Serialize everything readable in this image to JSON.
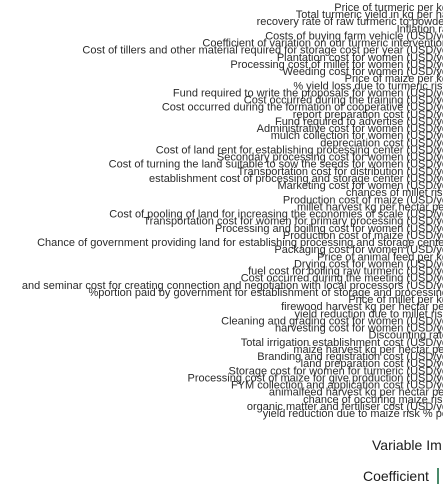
{
  "chart_data": {
    "type": "bar",
    "orientation": "horizontal",
    "xlabel": "Variable Im",
    "legend_title": "Coefficient",
    "categories": [
      "Price of turmeric per kg",
      "Total turmeric yield in kg per ha",
      "recovery rate of raw turmeric to powder",
      "Inflation ra",
      "Costs of buying farm vehicle (USD/ye",
      "Coefficient of variation on our turmeric intervention",
      "Cost of tillers and other material required for storage cost per year (USD/ye",
      "Plantation cost for women (USD/ye",
      "Processing cost of millet for women (USD/ye",
      "Weeding cost for women (USD/ye",
      "Price of maize per kg",
      "% yield loss due to turmeric risk",
      "Fund required to write the proposals for women (USD/ye",
      "Cost occurred during the training (USD/ye",
      "Cost occurred during the formation of cooperative (USD/ye",
      "report preparation cost (USD/ye",
      "Fund required to advertise (USD/ye",
      "Administrative cost for women (USD/ye",
      "mulch collection for women (USD/ye",
      "depreciation cost (USD/ye",
      "Cost of land rent for establishing processing center (USD/ye",
      "Secondary processing cost for women (USD/ye",
      "Cost of turning the land suitable to sow the seeds for women (USD/ye",
      "Transportation cost for distribution (USD/ye",
      "establishment cost of processing and storage center (USD/ye",
      "Marketing cost for women (USD/ye",
      "chances of millet risk",
      "Production cost of maize (USD/ye",
      "millet harvest kg per hectar per",
      "Cost of pooling of land for increasing the economies of scale (USD/ye",
      "Transportation cost for women for primary processing (USD/ye",
      "Processing and boiling cost for women (USD/ye",
      "Production cost of maize (USD/ye",
      "Chance of government providing land for establishing processing and storage center",
      "Packaging cost for women (USD/ye",
      "Price of animal feed per kg",
      "Drying cost for women (USD/ye",
      "fuel cost for boiling raw turmeric (USD/ye",
      "Cost occurred during the meeting (USD/ye",
      "and seminar cost for creating connection and negotiation with local processors (USD/ye",
      "%portion paid by government for establishment of storage and processing",
      "Price of millet per kg",
      "firewood harvest kg per hectar per",
      "yield reduction due to millet risk",
      "Cleaning and grading cost for women (USD/ye",
      "harvesting cost for women (USD/ye",
      "Discounting rate",
      "Total irrigation establishment cost (USD/ye",
      "maize harvest kg per hectar per",
      "Branding and registration cost (USD/ye",
      "land preparation cost (USD/ye",
      "Storage cost for women for turmeric (USD/ye",
      "Processing cost of maize for give production (USD/ye",
      "FYM collection and application cost (USD/ye",
      "animalfeed harvest kg per hectar per",
      "chance of occuring maize risk",
      "organic matter and fertiliser cost (USD/ye",
      "yield reduction due to maize risk % pe"
    ]
  }
}
